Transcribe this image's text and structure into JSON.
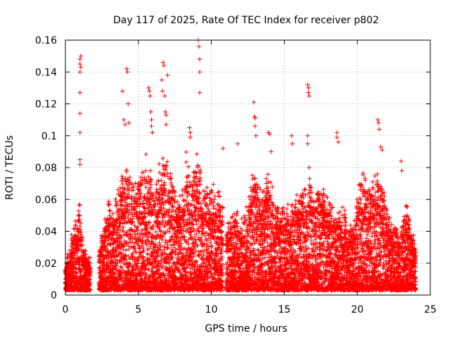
{
  "chart_data": {
    "type": "scatter",
    "title": "Day 117 of 2025, Rate Of TEC Index for receiver p802",
    "xlabel": "GPS time / hours",
    "ylabel": "ROTI / TECUs",
    "xlim": [
      0,
      25
    ],
    "ylim": [
      0,
      0.16
    ],
    "xticks": [
      0,
      5,
      10,
      15,
      20,
      25
    ],
    "yticks": [
      0,
      0.02,
      0.04,
      0.06,
      0.08,
      0.1,
      0.12,
      0.14,
      0.16
    ],
    "xtick_labels": [
      "0",
      "5",
      "10",
      "15",
      "20",
      "25"
    ],
    "ytick_labels": [
      "0",
      "0.02",
      "0.04",
      "0.06",
      "0.08",
      "0.1",
      "0.12",
      "0.14",
      "0.16"
    ],
    "grid": true,
    "marker": "+",
    "marker_color": "#ff0000",
    "x_data_range": [
      0,
      24
    ],
    "gaps": [
      [
        1.7,
        2.3
      ],
      [
        10.8,
        11.0
      ]
    ],
    "envelope": [
      [
        0.0,
        0.018
      ],
      [
        0.3,
        0.03
      ],
      [
        0.5,
        0.045
      ],
      [
        0.8,
        0.045
      ],
      [
        1.0,
        0.06
      ],
      [
        1.2,
        0.035
      ],
      [
        1.5,
        0.025
      ],
      [
        1.7,
        0.025
      ],
      [
        2.3,
        0.03
      ],
      [
        2.6,
        0.045
      ],
      [
        3.0,
        0.062
      ],
      [
        3.3,
        0.055
      ],
      [
        3.6,
        0.07
      ],
      [
        4.0,
        0.08
      ],
      [
        4.3,
        0.085
      ],
      [
        4.6,
        0.07
      ],
      [
        5.0,
        0.075
      ],
      [
        5.3,
        0.085
      ],
      [
        5.6,
        0.095
      ],
      [
        6.0,
        0.07
      ],
      [
        6.3,
        0.085
      ],
      [
        6.6,
        0.09
      ],
      [
        7.0,
        0.09
      ],
      [
        7.3,
        0.08
      ],
      [
        7.6,
        0.065
      ],
      [
        8.0,
        0.065
      ],
      [
        8.3,
        0.09
      ],
      [
        8.6,
        0.075
      ],
      [
        9.0,
        0.09
      ],
      [
        9.3,
        0.08
      ],
      [
        9.6,
        0.07
      ],
      [
        10.0,
        0.072
      ],
      [
        10.4,
        0.07
      ],
      [
        10.8,
        0.06
      ],
      [
        11.0,
        0.045
      ],
      [
        11.5,
        0.055
      ],
      [
        12.0,
        0.05
      ],
      [
        12.5,
        0.06
      ],
      [
        12.8,
        0.085
      ],
      [
        13.2,
        0.065
      ],
      [
        13.6,
        0.07
      ],
      [
        14.0,
        0.08
      ],
      [
        14.3,
        0.06
      ],
      [
        14.6,
        0.055
      ],
      [
        15.0,
        0.06
      ],
      [
        15.3,
        0.055
      ],
      [
        15.6,
        0.06
      ],
      [
        16.0,
        0.065
      ],
      [
        16.4,
        0.075
      ],
      [
        16.7,
        0.08
      ],
      [
        17.0,
        0.065
      ],
      [
        17.4,
        0.07
      ],
      [
        17.8,
        0.07
      ],
      [
        18.2,
        0.06
      ],
      [
        18.6,
        0.055
      ],
      [
        19.0,
        0.055
      ],
      [
        19.4,
        0.045
      ],
      [
        19.8,
        0.05
      ],
      [
        20.2,
        0.075
      ],
      [
        20.6,
        0.075
      ],
      [
        21.0,
        0.07
      ],
      [
        21.4,
        0.08
      ],
      [
        21.8,
        0.07
      ],
      [
        22.2,
        0.05
      ],
      [
        22.6,
        0.045
      ],
      [
        23.0,
        0.045
      ],
      [
        23.4,
        0.06
      ],
      [
        23.8,
        0.04
      ],
      [
        24.0,
        0.03
      ]
    ],
    "outliers": [
      [
        1.0,
        0.148
      ],
      [
        1.0,
        0.145
      ],
      [
        1.0,
        0.14
      ],
      [
        1.0,
        0.127
      ],
      [
        1.0,
        0.114
      ],
      [
        1.0,
        0.102
      ],
      [
        1.0,
        0.085
      ],
      [
        1.0,
        0.082
      ],
      [
        1.05,
        0.15
      ],
      [
        1.05,
        0.143
      ],
      [
        3.9,
        0.128
      ],
      [
        4.0,
        0.11
      ],
      [
        4.1,
        0.107
      ],
      [
        4.2,
        0.142
      ],
      [
        4.25,
        0.14
      ],
      [
        4.3,
        0.12
      ],
      [
        4.35,
        0.108
      ],
      [
        5.7,
        0.13
      ],
      [
        5.75,
        0.128
      ],
      [
        5.8,
        0.125
      ],
      [
        5.85,
        0.115
      ],
      [
        5.9,
        0.11
      ],
      [
        5.9,
        0.106
      ],
      [
        5.95,
        0.102
      ],
      [
        6.6,
        0.135
      ],
      [
        6.65,
        0.128
      ],
      [
        6.7,
        0.146
      ],
      [
        6.75,
        0.144
      ],
      [
        6.8,
        0.125
      ],
      [
        6.85,
        0.115
      ],
      [
        6.9,
        0.113
      ],
      [
        6.9,
        0.107
      ],
      [
        7.0,
        0.138
      ],
      [
        8.5,
        0.105
      ],
      [
        8.55,
        0.102
      ],
      [
        8.55,
        0.099
      ],
      [
        9.1,
        0.16
      ],
      [
        9.15,
        0.156
      ],
      [
        9.2,
        0.148
      ],
      [
        9.2,
        0.14
      ],
      [
        9.2,
        0.127
      ],
      [
        10.8,
        0.092
      ],
      [
        11.8,
        0.095
      ],
      [
        12.9,
        0.121
      ],
      [
        12.95,
        0.112
      ],
      [
        13.0,
        0.111
      ],
      [
        13.0,
        0.106
      ],
      [
        13.05,
        0.1
      ],
      [
        13.9,
        0.102
      ],
      [
        14.0,
        0.101
      ],
      [
        14.1,
        0.09
      ],
      [
        15.5,
        0.1
      ],
      [
        15.55,
        0.095
      ],
      [
        16.6,
        0.132
      ],
      [
        16.65,
        0.13
      ],
      [
        16.65,
        0.127
      ],
      [
        16.7,
        0.125
      ],
      [
        16.6,
        0.1
      ],
      [
        16.6,
        0.095
      ],
      [
        18.6,
        0.102
      ],
      [
        18.6,
        0.099
      ],
      [
        18.7,
        0.096
      ],
      [
        21.4,
        0.11
      ],
      [
        21.45,
        0.108
      ],
      [
        21.5,
        0.104
      ],
      [
        21.6,
        0.093
      ],
      [
        21.7,
        0.091
      ],
      [
        23.0,
        0.084
      ],
      [
        23.05,
        0.078
      ]
    ]
  }
}
